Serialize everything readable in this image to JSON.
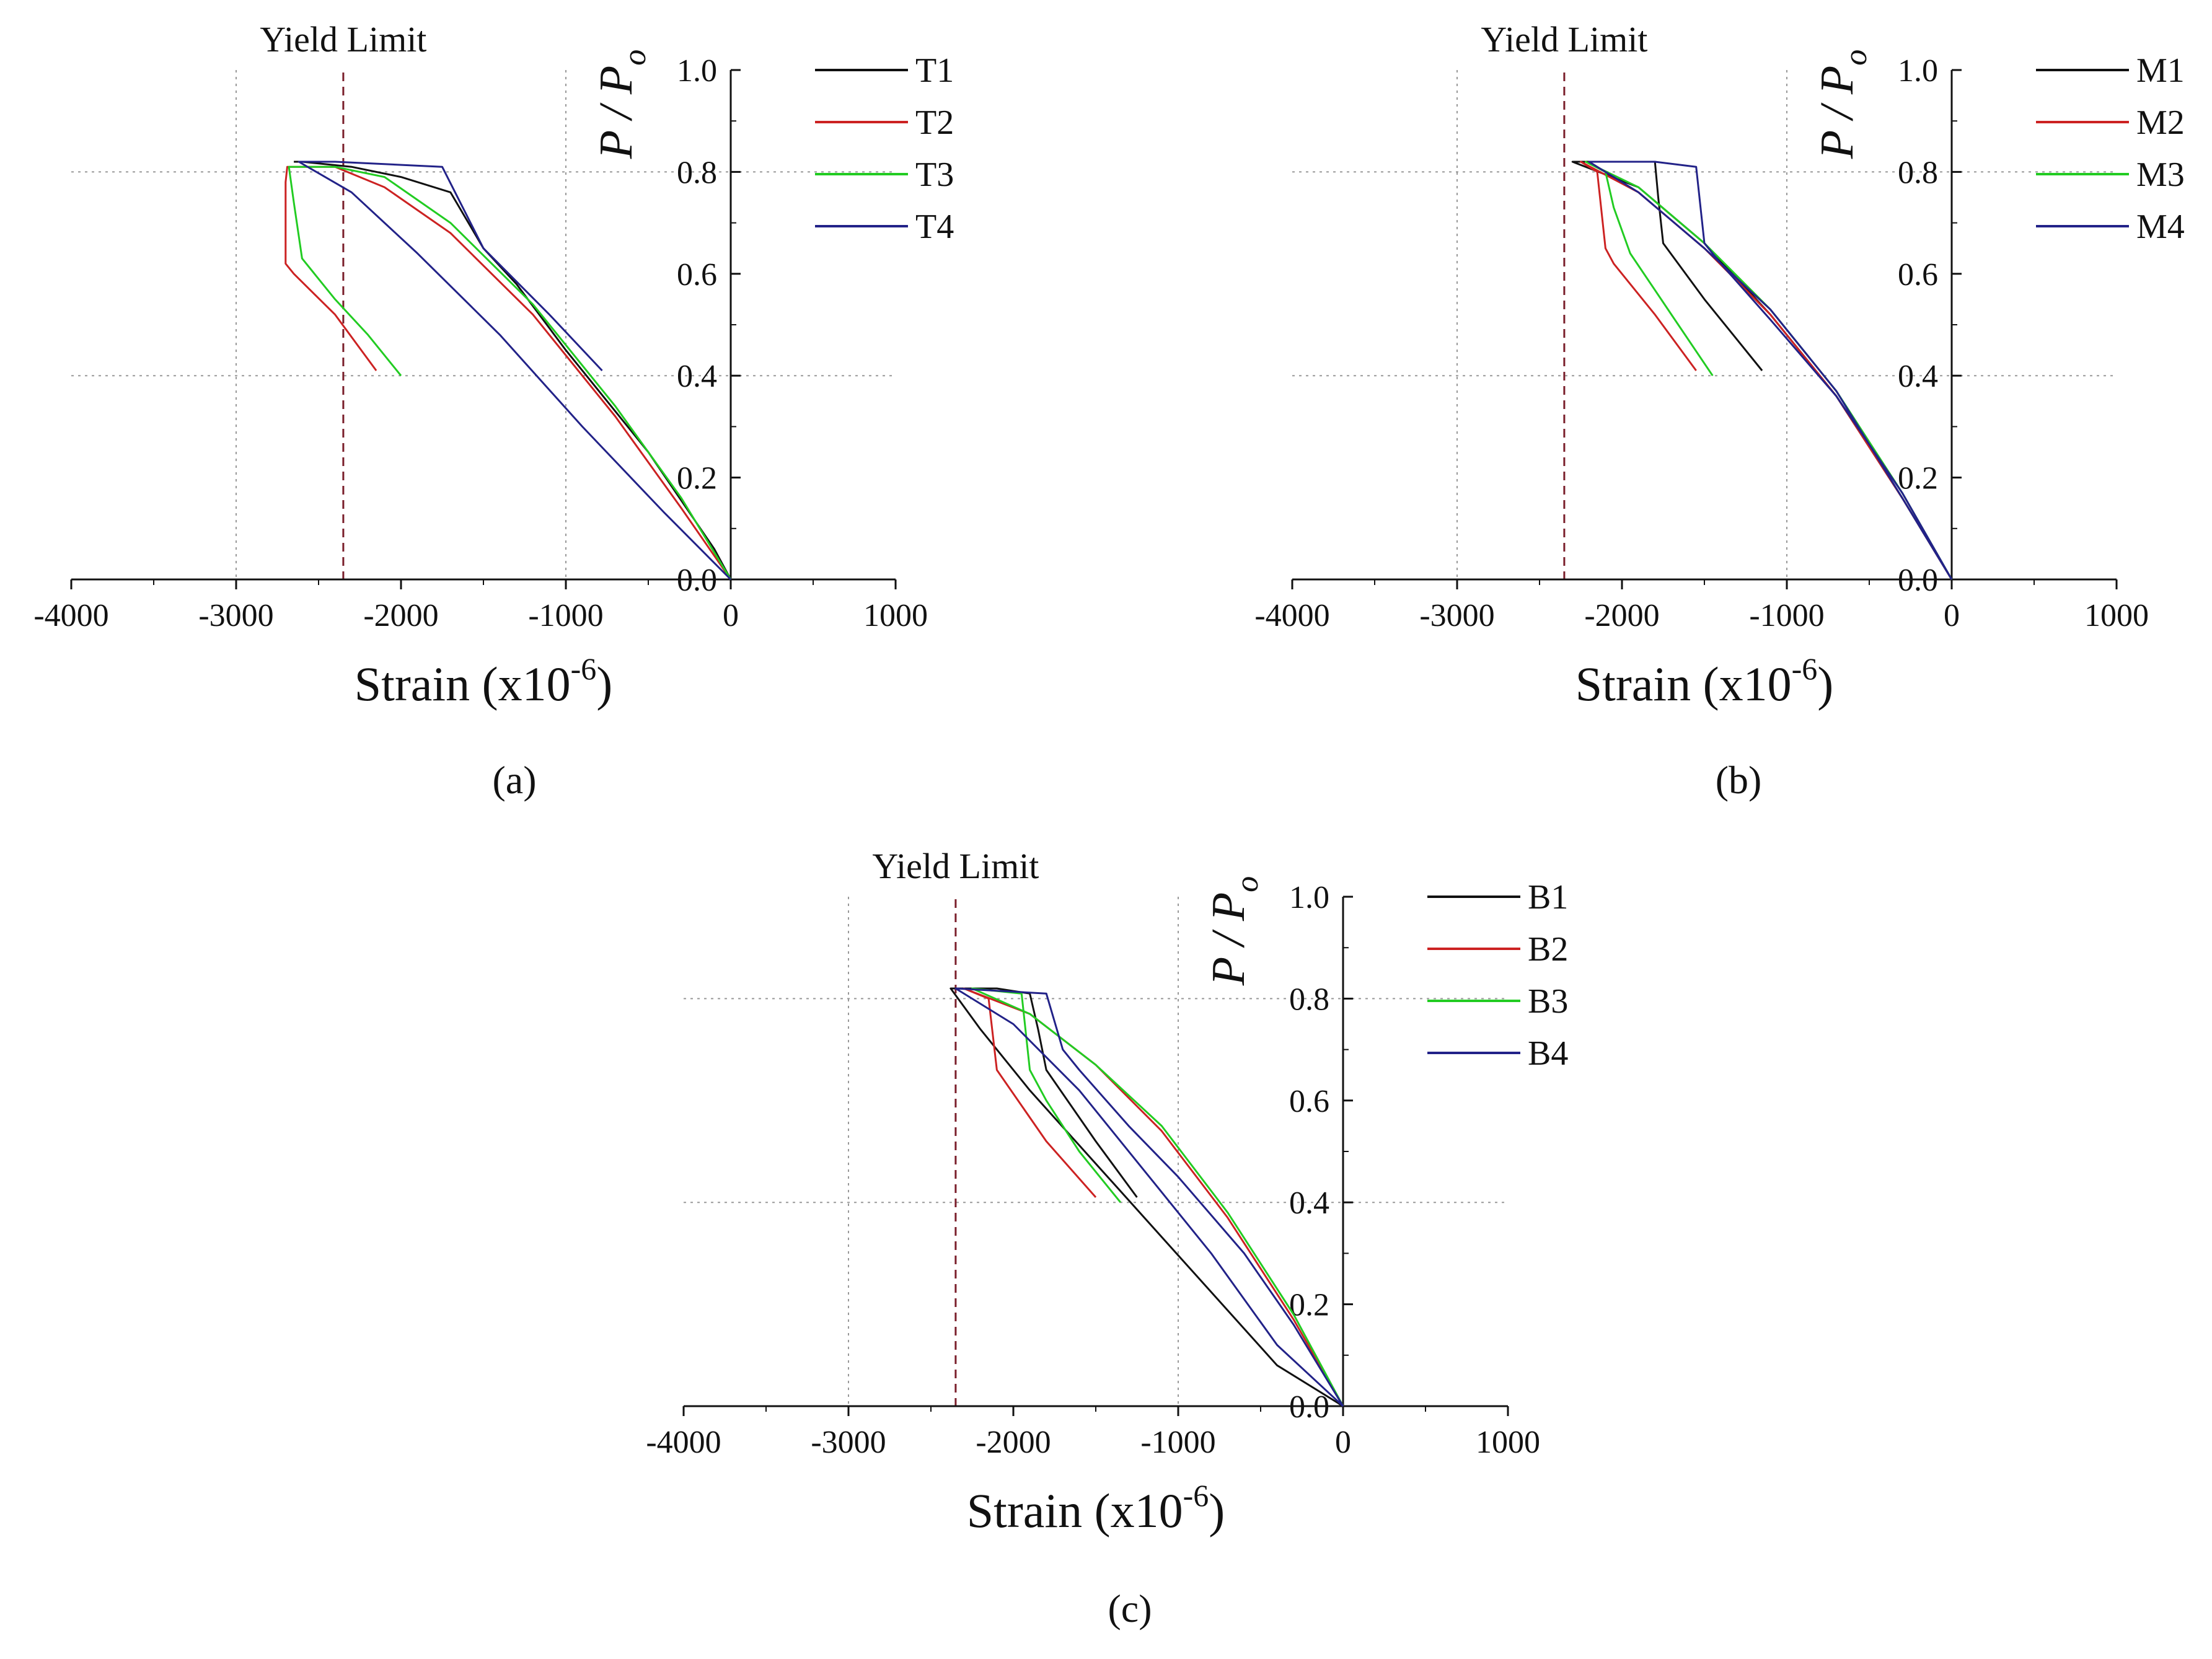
{
  "chart_data": [
    {
      "type": "line",
      "panel_label": "(a)",
      "annotation": "Yield Limit",
      "yield_limit_x": -2350,
      "xlabel": "Strain (x10",
      "xlabel_exp": "-6",
      "xlabel_close": ")",
      "ylabel": "P / P",
      "ylabel_sub": "o",
      "xlim": [
        -4000,
        1000
      ],
      "ylim": [
        0,
        1.0
      ],
      "xticks": [
        "-4000",
        "-3000",
        "-2000",
        "-1000",
        "0",
        "1000"
      ],
      "yticks": [
        "0.0",
        "0.2",
        "0.4",
        "0.6",
        "0.8",
        "1.0"
      ],
      "grid": "dotted at x=-3000, -1000 and y=0.4, 0.8",
      "legend_position": "top-right",
      "series": [
        {
          "name": "T1",
          "color": "#111111",
          "x": [
            0,
            -100,
            -500,
            -1000,
            -1300,
            -1500,
            -1700,
            -2000,
            -2300,
            -2600,
            -2650
          ],
          "y": [
            0,
            0.06,
            0.25,
            0.45,
            0.58,
            0.65,
            0.76,
            0.79,
            0.81,
            0.82,
            0.82
          ]
        },
        {
          "name": "T2",
          "color": "#cc2222",
          "x": [
            0,
            -300,
            -700,
            -1200,
            -1700,
            -2100,
            -2400,
            -2600,
            -2690,
            -2700,
            -2700,
            -2650,
            -2400,
            -2150
          ],
          "y": [
            0,
            0.14,
            0.32,
            0.52,
            0.68,
            0.77,
            0.81,
            0.81,
            0.81,
            0.78,
            0.62,
            0.6,
            0.52,
            0.41
          ]
        },
        {
          "name": "T3",
          "color": "#22cc22",
          "x": [
            0,
            -300,
            -700,
            -1200,
            -1700,
            -2100,
            -2400,
            -2600,
            -2680,
            -2650,
            -2600,
            -2400,
            -2200,
            -2000
          ],
          "y": [
            0,
            0.16,
            0.34,
            0.54,
            0.7,
            0.79,
            0.81,
            0.81,
            0.81,
            0.74,
            0.63,
            0.55,
            0.48,
            0.4
          ]
        },
        {
          "name": "T4",
          "color": "#222288",
          "x": [
            0,
            -400,
            -900,
            -1400,
            -1900,
            -2300,
            -2620,
            -2400,
            -1750,
            -1500,
            -1100,
            -780
          ],
          "y": [
            0,
            0.13,
            0.3,
            0.48,
            0.64,
            0.76,
            0.82,
            0.82,
            0.81,
            0.65,
            0.52,
            0.41
          ]
        }
      ]
    },
    {
      "type": "line",
      "panel_label": "(b)",
      "annotation": "Yield Limit",
      "yield_limit_x": -2350,
      "xlabel": "Strain (x10",
      "xlabel_exp": "-6",
      "xlabel_close": ")",
      "ylabel": "P / P",
      "ylabel_sub": "o",
      "xlim": [
        -4000,
        1000
      ],
      "ylim": [
        0,
        1.0
      ],
      "xticks": [
        "-4000",
        "-3000",
        "-2000",
        "-1000",
        "0",
        "1000"
      ],
      "yticks": [
        "0.0",
        "0.2",
        "0.4",
        "0.6",
        "0.8",
        "1.0"
      ],
      "grid": "dotted at x=-3000, -1000 and y=0.4, 0.8",
      "legend_position": "top-right",
      "series": [
        {
          "name": "M1",
          "color": "#111111",
          "x": [
            0,
            -300,
            -700,
            -1100,
            -1500,
            -1900,
            -2300,
            -2000,
            -1800,
            -1780,
            -1750,
            -1500,
            -1150
          ],
          "y": [
            0,
            0.16,
            0.36,
            0.52,
            0.66,
            0.77,
            0.82,
            0.82,
            0.82,
            0.75,
            0.66,
            0.55,
            0.41
          ]
        },
        {
          "name": "M2",
          "color": "#cc2222",
          "x": [
            0,
            -300,
            -700,
            -1100,
            -1500,
            -1900,
            -2250,
            -2150,
            -2100,
            -2050,
            -1800,
            -1550
          ],
          "y": [
            0,
            0.16,
            0.36,
            0.52,
            0.65,
            0.76,
            0.82,
            0.8,
            0.65,
            0.62,
            0.52,
            0.41
          ]
        },
        {
          "name": "M3",
          "color": "#22cc22",
          "x": [
            0,
            -300,
            -700,
            -1100,
            -1500,
            -1900,
            -2220,
            -2100,
            -2050,
            -1950,
            -1700,
            -1450
          ],
          "y": [
            0,
            0.17,
            0.37,
            0.53,
            0.66,
            0.77,
            0.82,
            0.8,
            0.73,
            0.64,
            0.52,
            0.4
          ]
        },
        {
          "name": "M4",
          "color": "#222288",
          "x": [
            0,
            -300,
            -700,
            -1100,
            -1500,
            -1900,
            -2200,
            -1800,
            -1550,
            -1500,
            -1400,
            -1100,
            -700,
            -300,
            0
          ],
          "y": [
            0,
            0.16,
            0.37,
            0.53,
            0.65,
            0.76,
            0.82,
            0.82,
            0.81,
            0.66,
            0.62,
            0.51,
            0.36,
            0.17,
            0
          ]
        }
      ]
    },
    {
      "type": "line",
      "panel_label": "(c)",
      "annotation": "Yield Limit",
      "yield_limit_x": -2350,
      "xlabel": "Strain (x10",
      "xlabel_exp": "-6",
      "xlabel_close": ")",
      "ylabel": "P / P",
      "ylabel_sub": "o",
      "xlim": [
        -4000,
        1000
      ],
      "ylim": [
        0,
        1.0
      ],
      "xticks": [
        "-4000",
        "-3000",
        "-2000",
        "-1000",
        "0",
        "1000"
      ],
      "yticks": [
        "0.0",
        "0.2",
        "0.4",
        "0.6",
        "0.8",
        "1.0"
      ],
      "grid": "dotted at x=-3000, -1000 and y=0.4, 0.8",
      "legend_position": "top-right",
      "series": [
        {
          "name": "B1",
          "color": "#111111",
          "x": [
            0,
            -400,
            -900,
            -1400,
            -1900,
            -2200,
            -2380,
            -2100,
            -1900,
            -1850,
            -1800,
            -1500,
            -1250
          ],
          "y": [
            0,
            0.08,
            0.26,
            0.44,
            0.62,
            0.74,
            0.82,
            0.82,
            0.81,
            0.74,
            0.66,
            0.52,
            0.41
          ]
        },
        {
          "name": "B2",
          "color": "#cc2222",
          "x": [
            0,
            -300,
            -700,
            -1100,
            -1500,
            -1900,
            -2300,
            -2150,
            -2100,
            -1800,
            -1500
          ],
          "y": [
            0,
            0.17,
            0.37,
            0.54,
            0.67,
            0.77,
            0.82,
            0.8,
            0.66,
            0.52,
            0.41
          ]
        },
        {
          "name": "B3",
          "color": "#22cc22",
          "x": [
            0,
            -300,
            -700,
            -1100,
            -1500,
            -1900,
            -2250,
            -1950,
            -1900,
            -1800,
            -1600,
            -1350
          ],
          "y": [
            0,
            0.18,
            0.38,
            0.55,
            0.67,
            0.77,
            0.82,
            0.81,
            0.66,
            0.6,
            0.5,
            0.4
          ]
        },
        {
          "name": "B4",
          "color": "#222288",
          "x": [
            0,
            -400,
            -800,
            -1200,
            -1600,
            -2000,
            -2350,
            -1800,
            -1700,
            -1600,
            -1300,
            -1000,
            -600,
            -300,
            0
          ],
          "y": [
            0,
            0.12,
            0.3,
            0.46,
            0.62,
            0.75,
            0.82,
            0.81,
            0.7,
            0.66,
            0.55,
            0.45,
            0.3,
            0.16,
            0
          ]
        }
      ]
    }
  ]
}
